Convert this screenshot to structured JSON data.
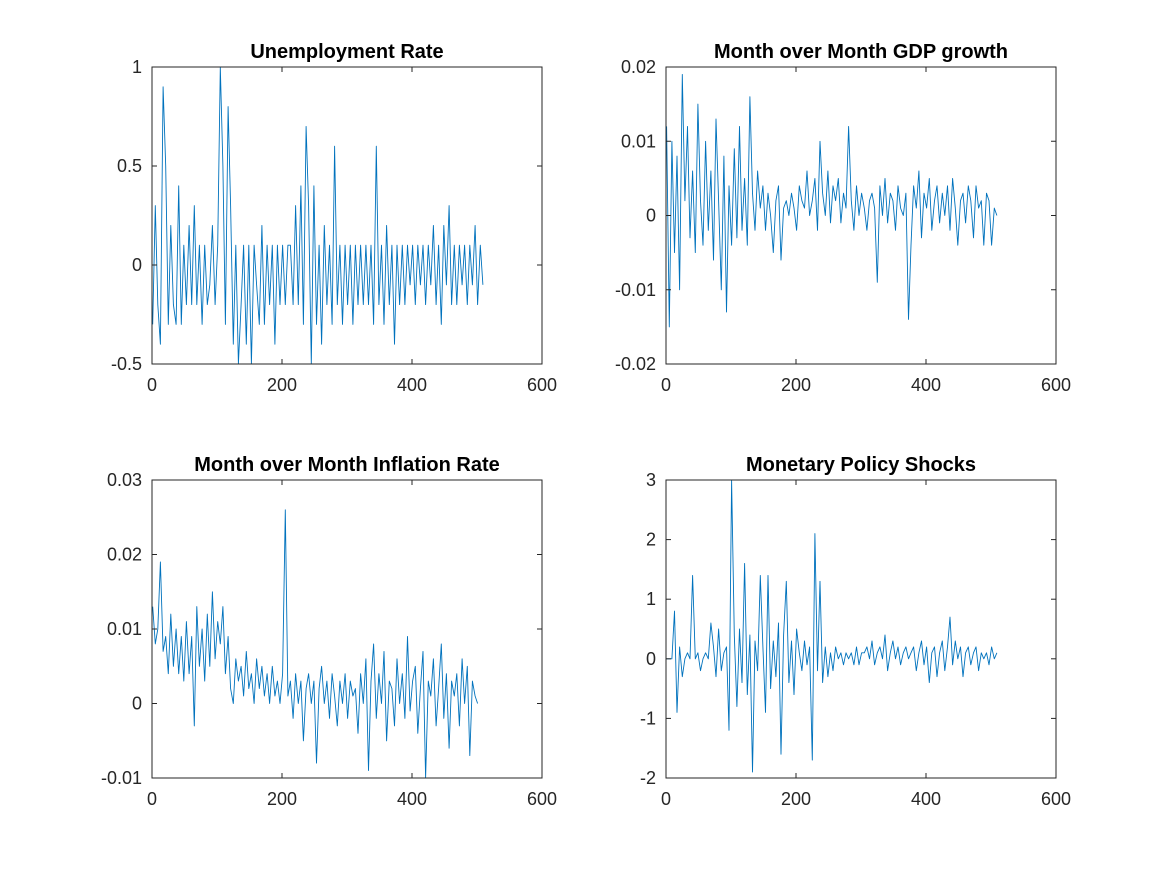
{
  "colors": {
    "series": "#0072BD",
    "axis": "#262626",
    "background": "#ffffff"
  },
  "chart_data": [
    {
      "type": "line",
      "title": "Unemployment Rate",
      "xlabel": "",
      "ylabel": "",
      "xlim": [
        0,
        600
      ],
      "ylim": [
        -0.5,
        1
      ],
      "x_ticks": [
        0,
        200,
        400,
        600
      ],
      "x_tick_labels": [
        "0",
        "200",
        "400",
        "600"
      ],
      "y_ticks": [
        -0.5,
        0,
        0.5,
        1
      ],
      "y_tick_labels": [
        "-0.5",
        "0",
        "0.5",
        "1"
      ],
      "grid": false,
      "series": [
        {
          "x_start": 1,
          "x_step": 4,
          "values": [
            -0.3,
            0.3,
            -0.2,
            -0.4,
            0.9,
            0.5,
            -0.3,
            0.2,
            -0.2,
            -0.3,
            0.4,
            -0.3,
            0.1,
            -0.2,
            0.2,
            -0.2,
            0.3,
            -0.2,
            0.1,
            -0.3,
            0.1,
            -0.2,
            -0.1,
            0.2,
            -0.2,
            0.1,
            1.0,
            0.5,
            -0.3,
            0.8,
            0.3,
            -0.4,
            0.1,
            -0.5,
            -0.2,
            0.1,
            -0.4,
            0.1,
            -0.5,
            0.1,
            -0.1,
            -0.3,
            0.2,
            -0.3,
            0.1,
            -0.2,
            0.1,
            -0.4,
            0.1,
            -0.2,
            0.1,
            -0.2,
            0.1,
            0.1,
            -0.2,
            0.3,
            -0.2,
            0.4,
            -0.3,
            0.7,
            0.3,
            -0.5,
            0.4,
            -0.3,
            0.1,
            -0.4,
            0.2,
            -0.2,
            0.1,
            -0.3,
            0.6,
            -0.2,
            0.1,
            -0.3,
            0.1,
            -0.2,
            0.1,
            -0.3,
            0.1,
            -0.2,
            0.1,
            -0.2,
            0.1,
            -0.2,
            0.1,
            -0.3,
            0.6,
            -0.2,
            0.1,
            -0.3,
            0.2,
            -0.2,
            0.1,
            -0.4,
            0.1,
            -0.2,
            0.1,
            -0.2,
            0.1,
            -0.1,
            0.1,
            -0.2,
            0.1,
            -0.1,
            0.1,
            -0.2,
            0.1,
            -0.1,
            0.2,
            -0.2,
            0.1,
            -0.3,
            0.2,
            -0.1,
            0.3,
            -0.2,
            0.1,
            -0.2,
            0.1,
            -0.1,
            0.1,
            -0.2,
            0.1,
            -0.1,
            0.2,
            -0.2,
            0.1,
            -0.1
          ]
        }
      ]
    },
    {
      "type": "line",
      "title": "Month over Month GDP growth",
      "xlabel": "",
      "ylabel": "",
      "xlim": [
        0,
        600
      ],
      "ylim": [
        -0.02,
        0.02
      ],
      "x_ticks": [
        0,
        200,
        400,
        600
      ],
      "x_tick_labels": [
        "0",
        "200",
        "400",
        "600"
      ],
      "y_ticks": [
        -0.02,
        -0.01,
        0,
        0.01,
        0.02
      ],
      "y_tick_labels": [
        "-0.02",
        "-0.01",
        "0",
        "0.01",
        "0.02"
      ],
      "grid": false,
      "series": [
        {
          "x_start": 1,
          "x_step": 4,
          "values": [
            0.012,
            -0.015,
            0.01,
            -0.005,
            0.008,
            -0.01,
            0.019,
            0.002,
            0.012,
            -0.003,
            0.006,
            -0.005,
            0.015,
            0.002,
            -0.004,
            0.01,
            -0.002,
            0.006,
            -0.006,
            0.013,
            0.002,
            -0.01,
            0.008,
            -0.013,
            0.004,
            -0.004,
            0.009,
            -0.003,
            0.012,
            -0.002,
            0.005,
            -0.004,
            0.016,
            0.003,
            -0.002,
            0.006,
            0.001,
            0.004,
            -0.002,
            0.003,
            0.0,
            -0.005,
            0.002,
            0.004,
            -0.006,
            0.001,
            0.002,
            0.0,
            0.003,
            0.001,
            -0.002,
            0.004,
            0.002,
            0.001,
            0.006,
            0.0,
            0.002,
            0.005,
            -0.002,
            0.01,
            0.003,
            0.0,
            0.006,
            -0.001,
            0.004,
            0.002,
            0.005,
            -0.001,
            0.003,
            0.001,
            0.012,
            0.002,
            -0.002,
            0.004,
            0.0,
            0.003,
            0.001,
            -0.002,
            0.002,
            0.003,
            0.001,
            -0.009,
            0.004,
            0.0,
            0.005,
            -0.001,
            0.003,
            0.002,
            -0.002,
            0.004,
            0.001,
            0.0,
            0.003,
            -0.014,
            -0.004,
            0.004,
            0.001,
            0.006,
            -0.003,
            0.003,
            0.001,
            0.005,
            -0.002,
            0.002,
            0.004,
            -0.001,
            0.003,
            0.0,
            0.004,
            -0.002,
            0.005,
            0.001,
            -0.004,
            0.002,
            0.003,
            -0.001,
            0.004,
            0.002,
            -0.003,
            0.004,
            0.001,
            0.002,
            -0.004,
            0.003,
            0.002,
            -0.004,
            0.001,
            0.0
          ]
        }
      ]
    },
    {
      "type": "line",
      "title": "Month over Month Inflation Rate",
      "xlabel": "",
      "ylabel": "",
      "xlim": [
        0,
        600
      ],
      "ylim": [
        -0.01,
        0.03
      ],
      "x_ticks": [
        0,
        200,
        400,
        600
      ],
      "x_tick_labels": [
        "0",
        "200",
        "400",
        "600"
      ],
      "y_ticks": [
        -0.01,
        0,
        0.01,
        0.02,
        0.03
      ],
      "y_tick_labels": [
        "-0.01",
        "0",
        "0.01",
        "0.02",
        "0.03"
      ],
      "grid": false,
      "series": [
        {
          "x_start": 1,
          "x_step": 4,
          "values": [
            0.013,
            0.008,
            0.01,
            0.019,
            0.007,
            0.009,
            0.004,
            0.012,
            0.005,
            0.01,
            0.004,
            0.009,
            0.003,
            0.011,
            0.004,
            0.009,
            -0.003,
            0.013,
            0.005,
            0.01,
            0.003,
            0.012,
            0.005,
            0.015,
            0.006,
            0.011,
            0.008,
            0.013,
            0.004,
            0.009,
            0.002,
            0.0,
            0.006,
            0.003,
            0.005,
            0.001,
            0.007,
            0.002,
            0.004,
            0.0,
            0.006,
            0.002,
            0.005,
            0.001,
            0.004,
            0.0,
            0.005,
            0.001,
            0.003,
            0.0,
            0.004,
            0.026,
            0.001,
            0.003,
            -0.002,
            0.004,
            0.0,
            0.003,
            -0.005,
            0.002,
            0.004,
            0.0,
            0.003,
            -0.008,
            0.002,
            0.005,
            0.0,
            0.003,
            -0.002,
            0.004,
            0.001,
            -0.003,
            0.003,
            0.0,
            0.004,
            -0.002,
            0.003,
            0.001,
            0.002,
            -0.004,
            0.004,
            0.0,
            0.006,
            -0.009,
            0.003,
            0.008,
            -0.002,
            0.004,
            0.0,
            0.007,
            -0.005,
            0.003,
            0.002,
            -0.003,
            0.006,
            0.0,
            0.004,
            -0.002,
            0.009,
            -0.001,
            0.003,
            0.005,
            -0.004,
            0.002,
            0.007,
            -0.01,
            0.003,
            0.001,
            0.006,
            -0.003,
            0.002,
            0.008,
            -0.002,
            0.004,
            -0.006,
            0.003,
            0.001,
            0.004,
            -0.003,
            0.006,
            0.0,
            0.005,
            -0.007,
            0.003,
            0.001,
            0.0
          ]
        }
      ]
    },
    {
      "type": "line",
      "title": "Monetary Policy Shocks",
      "xlabel": "",
      "ylabel": "",
      "xlim": [
        0,
        600
      ],
      "ylim": [
        -2,
        3
      ],
      "x_ticks": [
        0,
        200,
        400,
        600
      ],
      "x_tick_labels": [
        "0",
        "200",
        "400",
        "600"
      ],
      "y_ticks": [
        -2,
        -1,
        0,
        1,
        2,
        3
      ],
      "y_tick_labels": [
        "-2",
        "-1",
        "0",
        "1",
        "2",
        "3"
      ],
      "grid": false,
      "series": [
        {
          "x_start": 1,
          "x_step": 4,
          "values": [
            0,
            0,
            0,
            0.8,
            -0.9,
            0.2,
            -0.3,
            0,
            0.1,
            0,
            1.4,
            0,
            0.1,
            -0.2,
            0,
            0.1,
            0,
            0.6,
            0.2,
            -0.3,
            0.5,
            -0.2,
            0.1,
            0.2,
            -1.2,
            3.0,
            0.4,
            -0.8,
            0.5,
            -0.4,
            1.6,
            -0.6,
            0.4,
            -1.9,
            0.3,
            -0.2,
            1.4,
            0.2,
            -0.9,
            1.4,
            -0.5,
            0.3,
            -0.3,
            0.6,
            -1.6,
            0.4,
            1.3,
            -0.4,
            0.3,
            -0.6,
            0.5,
            0.1,
            -0.2,
            0.3,
            -0.1,
            0.2,
            -1.7,
            2.1,
            -0.2,
            1.3,
            -0.4,
            0.2,
            -0.3,
            0.1,
            -0.2,
            0.2,
            0,
            0.1,
            -0.1,
            0.1,
            0,
            0.1,
            -0.1,
            0.2,
            -0.1,
            0.1,
            0.1,
            0.2,
            0,
            0.3,
            -0.1,
            0.1,
            0.2,
            0,
            0.4,
            -0.2,
            0.1,
            0.3,
            0,
            0.2,
            -0.1,
            0.1,
            0.2,
            0,
            0.1,
            0.2,
            -0.2,
            0.1,
            0.3,
            -0.1,
            0.2,
            -0.4,
            0.1,
            0.2,
            -0.3,
            0.1,
            0.3,
            -0.2,
            0.2,
            0.7,
            -0.1,
            0.3,
            0,
            0.2,
            -0.3,
            0.1,
            0.2,
            -0.1,
            0.1,
            0.2,
            -0.2,
            0.1,
            0,
            0.1,
            -0.1,
            0.2,
            0,
            0.1
          ]
        }
      ]
    }
  ]
}
